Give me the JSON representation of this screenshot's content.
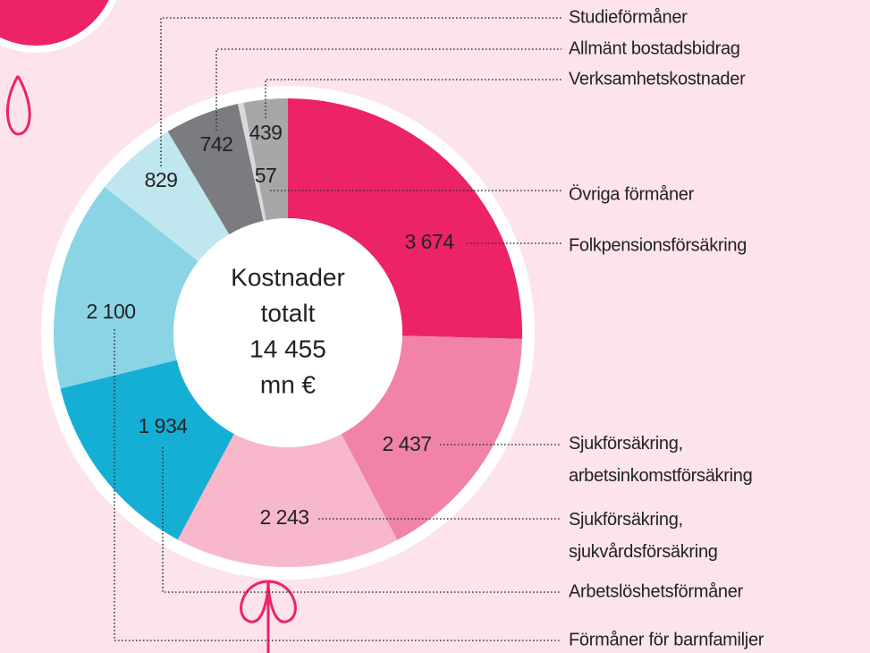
{
  "chart_data": {
    "type": "donut",
    "center_text": [
      "Kostnader",
      "totalt",
      "14 455",
      "mn €"
    ],
    "categories": [
      "Folkpensionsförsäkring",
      "Sjukförsäkring, arbetsinkomstförsäkring",
      "Sjukförsäkring, sjukvårdsförsäkring",
      "Arbetslöshetsförmåner",
      "Förmåner för barnfamiljer",
      "Studieförmåner",
      "Allmänt bostadsbidrag",
      "Övriga förmåner",
      "Verksamhetskostnader"
    ],
    "values": [
      3674,
      2437,
      2243,
      1934,
      2100,
      829,
      742,
      57,
      439
    ],
    "value_labels": [
      "3 674",
      "2 437",
      "2 243",
      "1 934",
      "2 100",
      "829",
      "742",
      "57",
      "439"
    ],
    "colors": [
      "#ec2366",
      "#f183a8",
      "#f7b8cc",
      "#15afd5",
      "#8ad4e6",
      "#c0e7f0",
      "#7b7c7f",
      "#d9d9db",
      "#a6a7a9"
    ]
  }
}
